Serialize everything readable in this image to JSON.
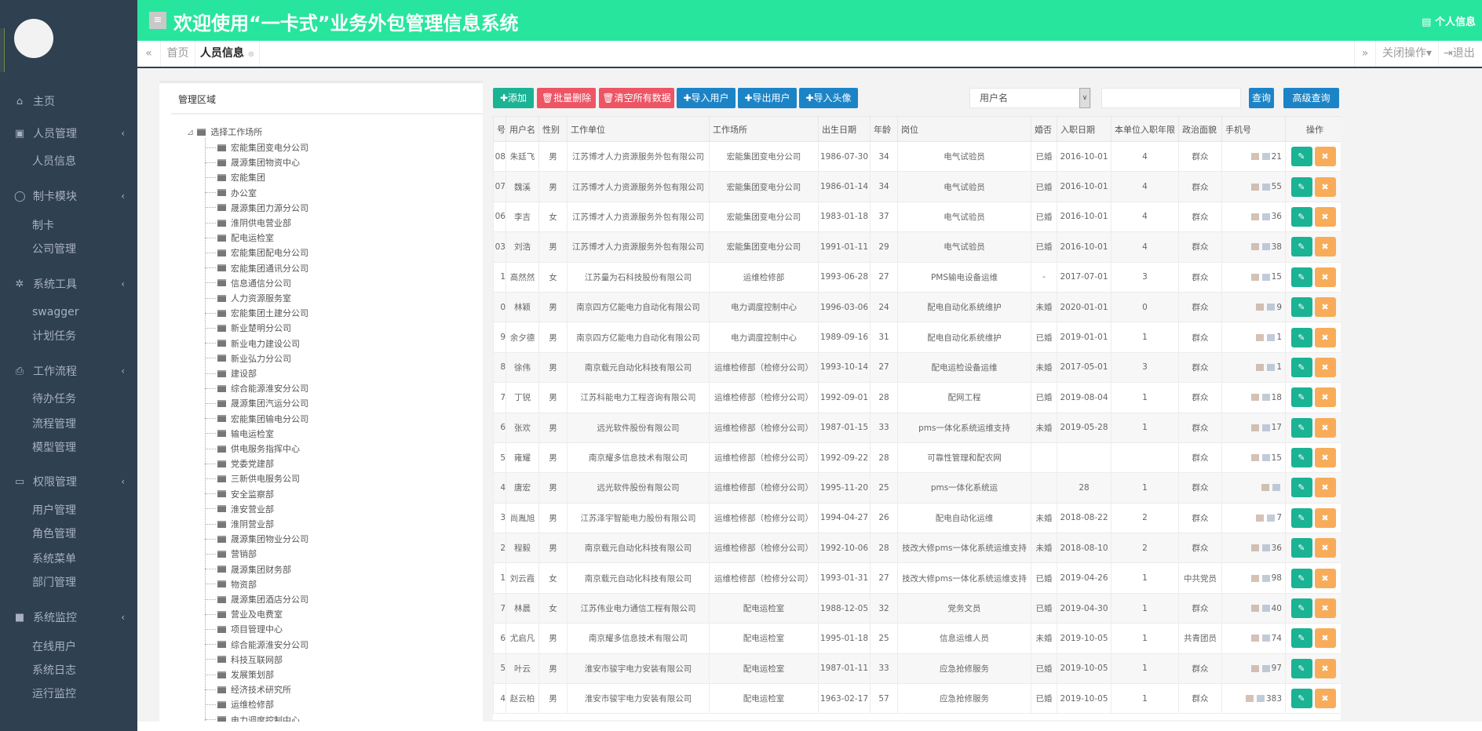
{
  "header": {
    "title": "欢迎使用“一卡式”业务外包管理信息系统",
    "menu_icon": "≡",
    "profile": "个人信息",
    "bg": "#28e59e"
  },
  "tabs": {
    "home": "首页",
    "active": "人员信息",
    "close_ops": "关闭操作",
    "logout": "退出"
  },
  "sidebar": {
    "items": [
      {
        "icon": "⌂",
        "label": "主页",
        "sub": []
      },
      {
        "icon": "▣",
        "label": "人员管理",
        "sub": [
          "人员信息"
        ]
      },
      {
        "icon": "◯",
        "label": "制卡模块",
        "sub": [
          "制卡",
          "公司管理"
        ]
      },
      {
        "icon": "✲",
        "label": "系统工具",
        "sub": [
          "swagger",
          "计划任务"
        ]
      },
      {
        "icon": "⎙",
        "label": "工作流程",
        "sub": [
          "待办任务",
          "流程管理",
          "模型管理"
        ]
      },
      {
        "icon": "▭",
        "label": "权限管理",
        "sub": [
          "用户管理",
          "角色管理",
          "系统菜单",
          "部门管理"
        ]
      },
      {
        "icon": "■",
        "label": "系统监控",
        "sub": [
          "在线用户",
          "系统日志",
          "运行监控"
        ]
      }
    ]
  },
  "tree": {
    "title": "管理区域",
    "root": "选择工作场所",
    "nodes": [
      "宏能集团变电分公司",
      "晟源集团物资中心",
      "宏能集团",
      "办公室",
      "晟源集团力源分公司",
      "淮阴供电营业部",
      "配电运检室",
      "宏能集团配电分公司",
      "宏能集团通讯分公司",
      "信息通信分公司",
      "人力资源服务室",
      "宏能集团土建分公司",
      "新业楚明分公司",
      "新业电力建设公司",
      "新业弘力分公司",
      "建设部",
      "综合能源淮安分公司",
      "晟源集团汽运分公司",
      "宏能集团输电分公司",
      "输电运检室",
      "供电服务指挥中心",
      "党委党建部",
      "三新供电服务公司",
      "安全监察部",
      "淮安营业部",
      "淮阴营业部",
      "晟源集团物业分公司",
      "营销部",
      "晟源集团财务部",
      "物资部",
      "晟源集团酒店分公司",
      "营业及电费室",
      "项目管理中心",
      "综合能源淮安分公司",
      "科技互联网部",
      "发展策划部",
      "经济技术研究所",
      "运维检修部",
      "电力调度控制中心"
    ]
  },
  "toolbar": {
    "add": "✚添加",
    "batch_delete": "🗑批量删除",
    "clear_all": "🗑清空所有数据",
    "import_users": "✚导入用户",
    "export_users": "✚导出用户",
    "import_avatars": "✚导入头像",
    "select_value": "用户名",
    "search_value": "",
    "search_placeholder": "",
    "query": "查询",
    "advanced_query": "高级查询"
  },
  "colors": {
    "add": "#1ab394",
    "danger": "#ed5565",
    "primary": "#1c84c6",
    "edit": "#1ab394",
    "delete": "#f8ac59"
  },
  "table": {
    "columns": [
      "号",
      "用户名",
      "性别",
      "工作单位",
      "工作场所",
      "出生日期",
      "年龄",
      "岗位",
      "婚否",
      "入职日期",
      "本单位入职年限",
      "政治面貌",
      "手机号",
      "操作"
    ],
    "rows": [
      [
        "08",
        "朱廷飞",
        "男",
        "江苏博才人力资源服务外包有限公司",
        "宏能集团变电分公司",
        "1986-07-30",
        "34",
        "电气试验员",
        "已婚",
        "2016-10-01",
        "4",
        "群众",
        "21"
      ],
      [
        "07",
        "魏溪",
        "男",
        "江苏博才人力资源服务外包有限公司",
        "宏能集团变电分公司",
        "1986-01-14",
        "34",
        "电气试验员",
        "已婚",
        "2016-10-01",
        "4",
        "群众",
        "55"
      ],
      [
        "06",
        "李吉",
        "女",
        "江苏博才人力资源服务外包有限公司",
        "宏能集团变电分公司",
        "1983-01-18",
        "37",
        "电气试验员",
        "已婚",
        "2016-10-01",
        "4",
        "群众",
        "36"
      ],
      [
        "03",
        "刘浩",
        "男",
        "江苏博才人力资源服务外包有限公司",
        "宏能集团变电分公司",
        "1991-01-11",
        "29",
        "电气试验员",
        "已婚",
        "2016-10-01",
        "4",
        "群众",
        "38"
      ],
      [
        "1",
        "高然然",
        "女",
        "江苏量为石科技股份有限公司",
        "运维检修部",
        "1993-06-28",
        "27",
        "PMS输电设备运维",
        "-",
        "2017-07-01",
        "3",
        "群众",
        "15"
      ],
      [
        "0",
        "林颖",
        "男",
        "南京四方亿能电力自动化有限公司",
        "电力调度控制中心",
        "1996-03-06",
        "24",
        "配电自动化系统维护",
        "未婚",
        "2020-01-01",
        "0",
        "群众",
        "9"
      ],
      [
        "9",
        "余夕德",
        "男",
        "南京四方亿能电力自动化有限公司",
        "电力调度控制中心",
        "1989-09-16",
        "31",
        "配电自动化系统维护",
        "已婚",
        "2019-01-01",
        "1",
        "群众",
        "1"
      ],
      [
        "8",
        "徐伟",
        "男",
        "南京载元自动化科技有限公司",
        "运维检修部（检修分公司）",
        "1993-10-14",
        "27",
        "配电运检设备运维",
        "未婚",
        "2017-05-01",
        "3",
        "群众",
        "1"
      ],
      [
        "7",
        "丁锐",
        "男",
        "江苏科能电力工程咨询有限公司",
        "运维检修部（检修分公司）",
        "1992-09-01",
        "28",
        "配网工程",
        "已婚",
        "2019-08-04",
        "1",
        "群众",
        "18"
      ],
      [
        "6",
        "张欢",
        "男",
        "远光软件股份有限公司",
        "运维检修部（检修分公司）",
        "1987-01-15",
        "33",
        "pms一体化系统运维支持",
        "未婚",
        "2019-05-28",
        "1",
        "群众",
        "17"
      ],
      [
        "5",
        "雍耀",
        "男",
        "南京耀多信息技术有限公司",
        "运维检修部（检修分公司）",
        "1992-09-22",
        "28",
        "可靠性管理和配农网",
        "",
        "",
        "",
        "群众",
        "15"
      ],
      [
        "4",
        "唐宏",
        "男",
        "远光软件股份有限公司",
        "运维检修部（检修分公司）",
        "1995-11-20",
        "25",
        "pms一体化系统运",
        "",
        "28",
        "1",
        "群众",
        ""
      ],
      [
        "3",
        "尚胤旭",
        "男",
        "江苏泽宇智能电力股份有限公司",
        "运维检修部（检修分公司）",
        "1994-04-27",
        "26",
        "配电自动化运维",
        "未婚",
        "2018-08-22",
        "2",
        "群众",
        "7"
      ],
      [
        "2",
        "程毅",
        "男",
        "南京载元自动化科技有限公司",
        "运维检修部（检修分公司）",
        "1992-10-06",
        "28",
        "技改大修pms一体化系统运维支持",
        "未婚",
        "2018-08-10",
        "2",
        "群众",
        "36"
      ],
      [
        "1",
        "刘云霞",
        "女",
        "南京载元自动化科技有限公司",
        "运维检修部（检修分公司）",
        "1993-01-31",
        "27",
        "技改大修pms一体化系统运维支持",
        "已婚",
        "2019-04-26",
        "1",
        "中共党员",
        "98"
      ],
      [
        "7",
        "林晨",
        "女",
        "江苏伟业电力通信工程有限公司",
        "配电运检室",
        "1988-12-05",
        "32",
        "党务文员",
        "已婚",
        "2019-04-30",
        "1",
        "群众",
        "40"
      ],
      [
        "6",
        "尤启凡",
        "男",
        "南京耀多信息技术有限公司",
        "配电运检室",
        "1995-01-18",
        "25",
        "信息运维人员",
        "未婚",
        "2019-10-05",
        "1",
        "共青团员",
        "74"
      ],
      [
        "5",
        "叶云",
        "男",
        "淮安市骏宇电力安装有限公司",
        "配电运检室",
        "1987-01-11",
        "33",
        "应急抢修服务",
        "已婚",
        "2019-10-05",
        "1",
        "群众",
        "97"
      ],
      [
        "4",
        "赵云柏",
        "男",
        "淮安市骏宇电力安装有限公司",
        "配电运检室",
        "1963-02-17",
        "57",
        "应急抢修服务",
        "已婚",
        "2019-10-05",
        "1",
        "群众",
        "383"
      ]
    ]
  }
}
